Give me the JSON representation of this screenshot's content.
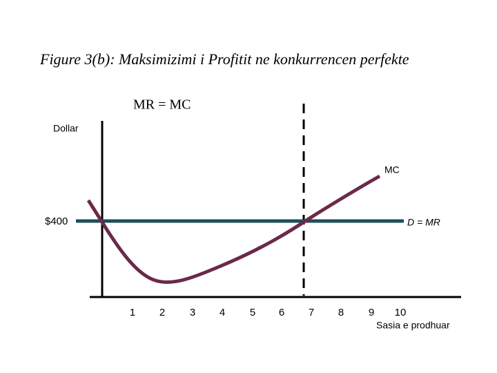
{
  "title": "Figure 3(b): Maksimizimi i Profitit ne konkurrencen perfekte",
  "annotation": "MR = MC",
  "y_axis_label": "Dollar",
  "x_axis_label": "Sasia e prodhuar",
  "y_tick_label": "$400",
  "x_tick_labels": [
    "1",
    "2",
    "3",
    "4",
    "5",
    "6",
    "7",
    "8",
    "9",
    "10"
  ],
  "curve_labels": {
    "mc": "MC",
    "demand": "D = MR"
  }
}
